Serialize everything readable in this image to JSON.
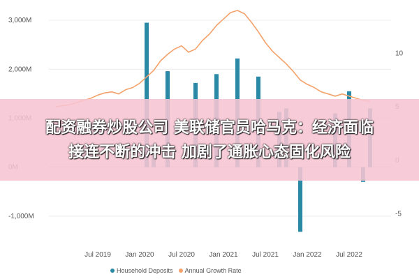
{
  "chart_data": {
    "type": "bar",
    "y_left": {
      "ylim": [
        -1500,
        3200
      ],
      "ticks": [
        3000,
        2000,
        1000,
        0,
        -1000
      ],
      "tick_labels": [
        "3,000M",
        "2,000M",
        "1,000M",
        "0M",
        "-1,000M"
      ]
    },
    "y_right": {
      "ylim": [
        -7.5,
        14
      ],
      "ticks": [
        10,
        5,
        0,
        -5
      ],
      "tick_labels": [
        "10",
        "5",
        "0",
        "-5"
      ]
    },
    "x_tick_labels": [
      "Jul 2019",
      "Jan 2020",
      "Jul 2020",
      "Jan 2021",
      "Jul 2021",
      "Jan 2022",
      "Jul 2022"
    ],
    "x_tick_positions": [
      6,
      12,
      18,
      24,
      30,
      36,
      42
    ],
    "x_range": [
      -1,
      48
    ],
    "series": [
      {
        "name": "Household Deposits",
        "type": "bar",
        "color": "#2a8aa6",
        "points": [
          [
            13,
            2950
          ],
          [
            14,
            480
          ],
          [
            16,
            1960
          ],
          [
            20,
            1720
          ],
          [
            23,
            1900
          ],
          [
            26,
            2220
          ],
          [
            29,
            1850
          ],
          [
            32,
            1130
          ],
          [
            33,
            1200
          ],
          [
            35,
            -1320
          ],
          [
            40,
            1100
          ],
          [
            42,
            1550
          ],
          [
            44,
            -300
          ],
          [
            45,
            1200
          ]
        ]
      },
      {
        "name": "Annual Growth Rate",
        "type": "line",
        "color": "#f4a26b",
        "x": [
          0,
          1,
          2,
          3,
          4,
          5,
          6,
          7,
          8,
          9,
          10,
          11,
          12,
          13,
          14,
          15,
          16,
          17,
          18,
          19,
          20,
          21,
          22,
          23,
          24,
          25,
          26,
          27,
          28,
          29,
          30,
          31,
          32,
          33,
          34,
          35,
          36,
          37,
          38,
          39,
          40,
          41,
          42,
          43,
          44,
          45
        ],
        "y": [
          5.0,
          5.1,
          5.2,
          5.4,
          5.6,
          5.8,
          6.1,
          6.3,
          6.4,
          6.2,
          6.6,
          6.8,
          7.2,
          7.8,
          8.4,
          9.3,
          9.9,
          10.4,
          10.7,
          10.1,
          10.4,
          11.2,
          11.8,
          12.6,
          13.2,
          13.8,
          14.0,
          13.7,
          12.9,
          12.0,
          11.0,
          10.2,
          9.6,
          9.0,
          8.3,
          7.5,
          7.1,
          6.8,
          6.4,
          6.2,
          6.0,
          6.2,
          6.0,
          5.8,
          5.6,
          5.5
        ]
      }
    ]
  },
  "legend": [
    {
      "label": "Household Deposits",
      "color": "#2a8aa6"
    },
    {
      "label": "Annual Growth Rate",
      "color": "#f4a26b"
    }
  ],
  "banner": {
    "line1": "配资融券炒股公司 美联储官员哈马克：经济面临",
    "line2": "接连不断的冲击 加剧了通胀心态固化风险"
  }
}
